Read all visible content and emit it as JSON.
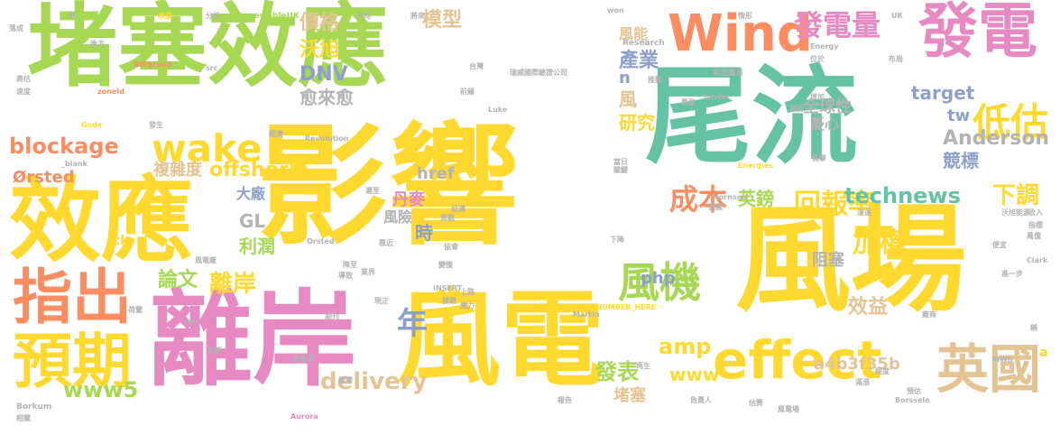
{
  "words": {
    "w1": "堵塞效應",
    "w2": "尾流",
    "w3": "影響",
    "w4": "風場",
    "w5": "效應",
    "w6": "離岸",
    "w7": "風電",
    "w8": "Wind",
    "w9": "發電",
    "w10": "指出",
    "w11": "預期",
    "w12": "effect",
    "w13": "英國",
    "w14": "風機",
    "w15": "發電量",
    "w16": "低估",
    "w17": "wake",
    "w18": "blockage",
    "w19": "成本",
    "w20": "回報率",
    "w21": "年",
    "w22": "technews",
    "w23": "下調",
    "w24": "Anderson",
    "w25": "加權",
    "w26": "價格",
    "w27": "沃旭",
    "w28": "DNV",
    "w29": "模型",
    "w30": "產業",
    "w31": "愈來愈",
    "w32": "offshore",
    "w33": "www5",
    "w34": "delivery",
    "w35": "離岸",
    "w36": "論文",
    "w37": "cb",
    "w38": "php",
    "w39": "amp",
    "w40": "發表",
    "w41": "www",
    "w42": "a4b3f35b",
    "w43": "效益",
    "w44": "全球性",
    "w45": "研究",
    "w46": "競標",
    "w47": "英鎊",
    "w48": "target",
    "w49": "tw",
    "w50": "利潤",
    "w51": "阻塞",
    "w52": "複雜度",
    "w53": "風險",
    "w54": "丹麥",
    "w55": "時",
    "w56": "大廠",
    "w57": "GL",
    "w58": "href",
    "w59": "憂心",
    "w60": "堵塞",
    "w61": "風",
    "w62": "風能",
    "w63": "Ørsted",
    "w64": "Research",
    "w65": "Energy",
    "w66": "Borkum",
    "w67": "Riffgrund",
    "w68": "Hornsea",
    "w69": "Revolution",
    "w70": "Martin",
    "w71": "Aurora",
    "w72": "Borssele",
    "w73": "Clark",
    "w74": "INSERT_RANDOM_NUMBER_HERE",
    "w75": "INSERT",
    "w76": "RenewableUK",
    "w77": "Energies",
    "w78": "Orsted",
    "w79": "zoneId",
    "w80": "hinder",
    "w81": "Luke",
    "w82": "MWh",
    "w83": "收入",
    "w84": "指標",
    "w85": "ck",
    "w86": "s",
    "w87": "n",
    "w88": "a",
    "w89": "img",
    "w90": "src",
    "w91": "_blank",
    "w92": "Gode",
    "w93": "won",
    "w94": "UK",
    "w95": "分析",
    "w96": "平均",
    "w97": "將來",
    "w98": "情形",
    "w99": "收益",
    "w100": "新",
    "w101": "尾流處",
    "w102": "布局",
    "w103": "位於",
    "w104": "貿易",
    "w105": "瑞威國際驗證公司",
    "w106": "台灣",
    "w107": "前緣",
    "w108": "推動",
    "w109": "專家",
    "w110": "增加",
    "w111": "減弱",
    "w112": "發生",
    "w113": "經濟",
    "w114": "後方",
    "w115": "預估",
    "w116": "德國",
    "w117": "深遠",
    "w118": "沃旭能源",
    "w119": "廠商",
    "w120": "風電廠",
    "w121": "判斷",
    "w122": "負責人",
    "w123": "報告",
    "w124": "估算",
    "w125": "風電場",
    "w126": "滿漲",
    "w127": "期刊",
    "w128": "現正",
    "w129": "延遲",
    "w130": "悲觀",
    "w131": "協會",
    "w132": "靠近",
    "w133": "障至",
    "w134": "上路",
    "w135": "魔力",
    "w136": "課題",
    "w137": "變慢",
    "w138": "下降",
    "w139": "便宜",
    "w140": "進一步",
    "w141": "萬億",
    "w142": "荷蘭",
    "w143": "高估",
    "w144": "速度",
    "w145": "落成",
    "w146": "業界",
    "w147": "衝擊",
    "w148": "當日",
    "w149": "關鍵",
    "w150": "產業界",
    "w151": "開發",
    "w152": "遲至",
    "w153": "導致",
    "w154": "相關",
    "w155": "再生",
    "w156": "程度",
    "w157": "稱"
  }
}
